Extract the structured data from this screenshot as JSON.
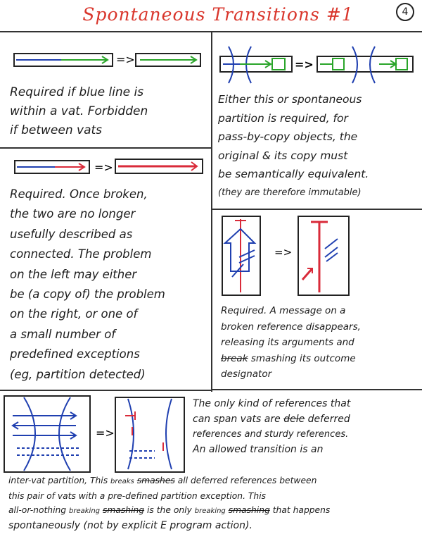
{
  "title": "Spontaneous Transitions #1",
  "page_number": "4",
  "panels": {
    "p1": {
      "lines": [
        "Required if blue line is",
        "within a vat. Forbidden",
        "if between vats"
      ]
    },
    "p2": {
      "lines": [
        "Either this or spontaneous",
        "partition is required, for",
        "pass-by-copy objects, the",
        "original & its copy must",
        "be semantically equivalent.",
        "(they are therefore immutable)"
      ]
    },
    "p3": {
      "lines": [
        "Required. Once broken,",
        "the two are no longer",
        "usefully described as",
        "connected. The problem",
        "on the left may either",
        "be (a copy of) the problem",
        "on the right, or one of",
        "a small number of",
        "predefined exceptions",
        "(eg, partition detected)"
      ]
    },
    "p4": {
      "line1": "Required. A message on a",
      "line2": "broken reference disappears,",
      "line3": "releasing its arguments and",
      "line4_struck": "break",
      "line4_rest": " smashing its outcome",
      "line5": "designator"
    },
    "p5": {
      "l1": "The only kind of references that",
      "l2": "can span vats are",
      "l2_struck": "dele",
      "l2_rest": " deferred",
      "l3": "references and sturdy references.",
      "l4": "An allowed transition is an",
      "l5a": "inter-vat partition, This",
      "l5_insert": "breaks",
      "l5_struck": "smashes",
      "l5_rest": " all deferred references between",
      "l6": "this pair of vats with a pre-defined partition exception. This",
      "l7a": "all-or-nothing",
      "l7_insert1": "breaking",
      "l7_struck1": "smashing",
      "l7b": " is the only",
      "l7_insert2": "breaking",
      "l7_struck2": "smashing",
      "l7c": " that happens",
      "l8": "spontaneously (not by explicit E program action)."
    }
  },
  "colors": {
    "title_red": "#d9362c",
    "arrow_blue": "#1f3fb0",
    "arrow_green": "#2aa52a",
    "arrow_red": "#d92b3a"
  }
}
